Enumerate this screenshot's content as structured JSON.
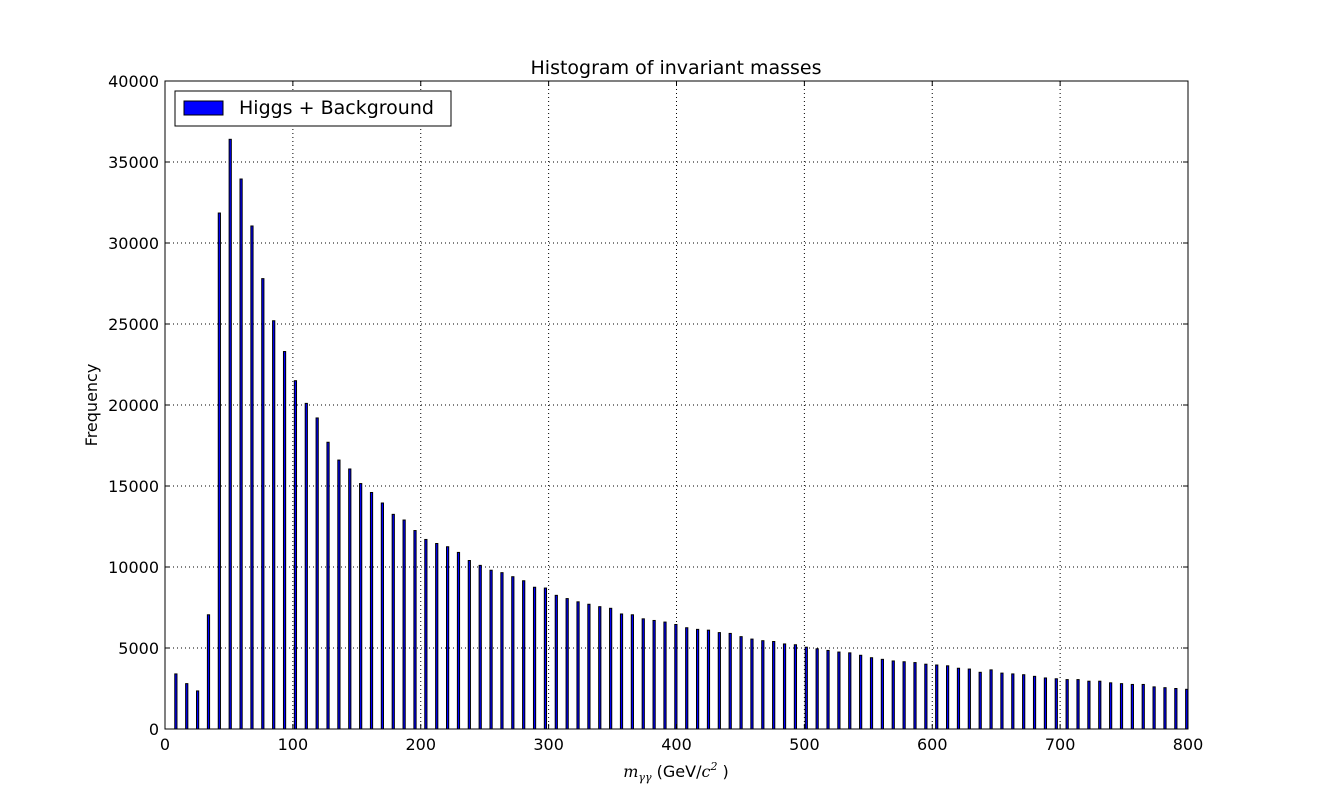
{
  "chart_data": {
    "type": "bar",
    "title": "Histogram of invariant masses",
    "ylabel": "Frequency",
    "xlabel": {
      "math_m": "m",
      "math_sub": "γγ",
      "unit_open": " (GeV/",
      "math_c": "c",
      "math_sup": "2",
      "unit_close": " )"
    },
    "xlim": [
      0,
      800
    ],
    "ylim": [
      0,
      40000
    ],
    "xticks": [
      "0",
      "100",
      "200",
      "300",
      "400",
      "500",
      "600",
      "700",
      "800"
    ],
    "yticks": [
      "0",
      "5000",
      "10000",
      "15000",
      "20000",
      "25000",
      "30000",
      "35000",
      "40000"
    ],
    "grid": true,
    "legend_position": "top-left",
    "series": [
      {
        "name": "Higgs + Background",
        "color": "#0000ff",
        "edge_color": "#000000",
        "x": [
          8.5,
          17,
          25.5,
          34,
          42.5,
          51,
          59.5,
          68,
          76.5,
          85,
          93.5,
          102,
          110.5,
          119,
          127.5,
          136,
          144.5,
          153,
          161.5,
          170,
          178.5,
          187,
          195.5,
          204,
          212.5,
          221,
          229.5,
          238,
          246.5,
          255,
          263.5,
          272,
          280.5,
          289,
          297.5,
          306,
          314.5,
          323,
          331.5,
          340,
          348.5,
          357,
          365.5,
          374,
          382.5,
          391,
          399.5,
          408,
          416.5,
          425,
          433.5,
          442,
          450.5,
          459,
          467.5,
          476,
          484.5,
          493,
          501.5,
          510,
          518.5,
          527,
          535.5,
          544,
          552.5,
          561,
          569.5,
          578,
          586.5,
          595,
          603.5,
          612,
          620.5,
          629,
          637.5,
          646,
          654.5,
          663,
          671.5,
          680,
          688.5,
          697,
          705.5,
          714,
          722.5,
          731,
          739.5,
          748,
          756.5,
          765,
          773.5,
          782,
          790.5,
          799
        ],
        "values": [
          3400,
          2800,
          2350,
          7050,
          31850,
          36400,
          33950,
          31050,
          27800,
          25200,
          23300,
          21500,
          20100,
          19200,
          17700,
          16600,
          16050,
          15150,
          14600,
          13950,
          13250,
          12900,
          12250,
          11700,
          11450,
          11250,
          10900,
          10400,
          10100,
          9800,
          9650,
          9400,
          9150,
          8750,
          8700,
          8250,
          8050,
          7850,
          7700,
          7550,
          7450,
          7100,
          7050,
          6800,
          6700,
          6600,
          6450,
          6250,
          6150,
          6100,
          5950,
          5900,
          5700,
          5550,
          5450,
          5400,
          5250,
          5200,
          5050,
          4950,
          4850,
          4750,
          4700,
          4550,
          4400,
          4300,
          4200,
          4150,
          4100,
          4000,
          3950,
          3900,
          3750,
          3700,
          3500,
          3650,
          3450,
          3400,
          3350,
          3250,
          3150,
          3100,
          3050,
          3050,
          2950,
          2950,
          2850,
          2800,
          2750,
          2750,
          2600,
          2550,
          2500,
          2450
        ]
      }
    ]
  }
}
